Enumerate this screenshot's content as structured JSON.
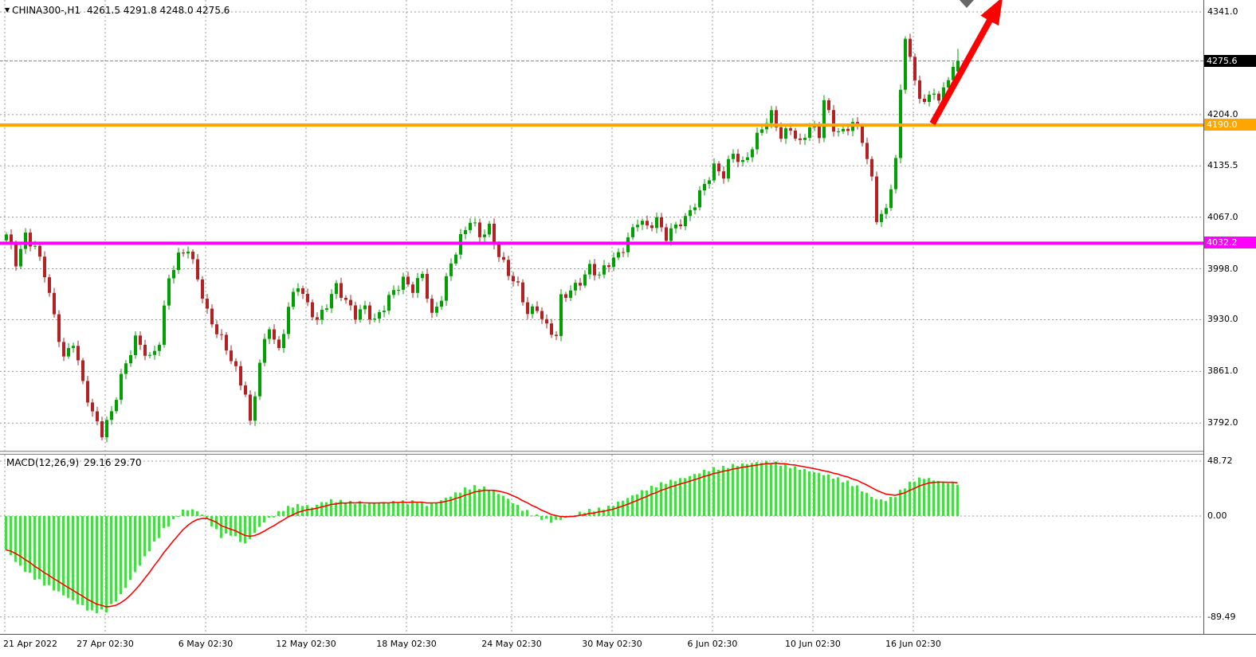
{
  "window": {
    "background": "#ffffff"
  },
  "symbol_bar": {
    "title": "CHINA300-,H1",
    "ohlc_text": "4261.5 4291.8 4248.0 4275.6",
    "dropdown_icon": "down-triangle"
  },
  "indicator_bar": {
    "label": "MACD(12,26,9)",
    "values_text": "29.16 29.70"
  },
  "colors": {
    "up": "#00A000",
    "down": "#B22222",
    "grid": "#999999",
    "current_line": "#888888",
    "hline_orange": "#FFA500",
    "hline_magenta": "#FF00FF",
    "tag_current_bg": "#000000",
    "macd_hist": "#44DD44",
    "macd_signal": "#FF0000",
    "arrow": "#FF0000",
    "marker_triangle": "#666666"
  },
  "chart_data": {
    "type": "candlestick",
    "instrument": "CHINA300-",
    "timeframe": "H1",
    "bars": 200,
    "ylim": [
      3755,
      4357
    ],
    "current_price": 4275.6,
    "last_ohlc": {
      "open": 4261.5,
      "high": 4291.8,
      "low": 4248.0,
      "close": 4275.6
    },
    "price_ticks": [
      {
        "label": "4341.0",
        "price": 4341.0,
        "type": "grid"
      },
      {
        "label": "4275.6",
        "price": 4275.6,
        "type": "current"
      },
      {
        "label": "4204.0",
        "price": 4204.0,
        "type": "grid"
      },
      {
        "label": "4190.0",
        "price": 4190.0,
        "type": "orange"
      },
      {
        "label": "4135.5",
        "price": 4135.5,
        "type": "grid"
      },
      {
        "label": "4067.0",
        "price": 4067.0,
        "type": "grid"
      },
      {
        "label": "4032.2",
        "price": 4032.2,
        "type": "magenta"
      },
      {
        "label": "3998.0",
        "price": 3998.0,
        "type": "grid"
      },
      {
        "label": "3930.0",
        "price": 3930.0,
        "type": "grid"
      },
      {
        "label": "3861.0",
        "price": 3861.0,
        "type": "grid"
      },
      {
        "label": "3792.0",
        "price": 3792.0,
        "type": "grid"
      }
    ],
    "time_labels": [
      {
        "index": 0,
        "label": "21 Apr 2022"
      },
      {
        "index": 21,
        "label": "27 Apr 02:30"
      },
      {
        "index": 42,
        "label": "6 May 02:30"
      },
      {
        "index": 63,
        "label": "12 May 02:30"
      },
      {
        "index": 84,
        "label": "18 May 02:30"
      },
      {
        "index": 106,
        "label": "24 May 02:30"
      },
      {
        "index": 127,
        "label": "30 May 02:30"
      },
      {
        "index": 148,
        "label": "6 Jun 02:30"
      },
      {
        "index": 169,
        "label": "10 Jun 02:30"
      },
      {
        "index": 190,
        "label": "16 Jun 02:30"
      }
    ],
    "hlines": [
      {
        "price": 4190.0,
        "label": "4190.0",
        "color_key": "hline_orange"
      },
      {
        "price": 4032.2,
        "label": "4032.2",
        "color_key": "hline_magenta"
      }
    ],
    "price_anchors": [
      [
        0,
        4040
      ],
      [
        2,
        4005
      ],
      [
        4,
        4045
      ],
      [
        6,
        4030
      ],
      [
        8,
        3990
      ],
      [
        10,
        3930
      ],
      [
        12,
        3880
      ],
      [
        14,
        3905
      ],
      [
        16,
        3845
      ],
      [
        18,
        3800
      ],
      [
        20,
        3778
      ],
      [
        22,
        3810
      ],
      [
        24,
        3855
      ],
      [
        27,
        3900
      ],
      [
        30,
        3880
      ],
      [
        32,
        3905
      ],
      [
        34,
        3985
      ],
      [
        36,
        4010
      ],
      [
        38,
        4025
      ],
      [
        40,
        3990
      ],
      [
        42,
        3940
      ],
      [
        44,
        3910
      ],
      [
        46,
        3890
      ],
      [
        48,
        3865
      ],
      [
        50,
        3835
      ],
      [
        51,
        3790
      ],
      [
        53,
        3870
      ],
      [
        55,
        3920
      ],
      [
        57,
        3890
      ],
      [
        59,
        3950
      ],
      [
        61,
        3975
      ],
      [
        63,
        3945
      ],
      [
        65,
        3930
      ],
      [
        67,
        3955
      ],
      [
        69,
        3975
      ],
      [
        71,
        3950
      ],
      [
        73,
        3935
      ],
      [
        75,
        3950
      ],
      [
        77,
        3930
      ],
      [
        79,
        3945
      ],
      [
        81,
        3965
      ],
      [
        83,
        3985
      ],
      [
        85,
        3975
      ],
      [
        87,
        3990
      ],
      [
        89,
        3930
      ],
      [
        91,
        3960
      ],
      [
        93,
        4010
      ],
      [
        95,
        4040
      ],
      [
        97,
        4060
      ],
      [
        99,
        4040
      ],
      [
        101,
        4055
      ],
      [
        103,
        4020
      ],
      [
        105,
        3990
      ],
      [
        107,
        3970
      ],
      [
        109,
        3940
      ],
      [
        111,
        3950
      ],
      [
        113,
        3920
      ],
      [
        115,
        3905
      ],
      [
        116,
        3955
      ],
      [
        118,
        3970
      ],
      [
        120,
        3985
      ],
      [
        122,
        4000
      ],
      [
        124,
        3985
      ],
      [
        126,
        4005
      ],
      [
        128,
        4020
      ],
      [
        130,
        4040
      ],
      [
        132,
        4060
      ],
      [
        134,
        4050
      ],
      [
        136,
        4065
      ],
      [
        138,
        4045
      ],
      [
        140,
        4055
      ],
      [
        142,
        4060
      ],
      [
        144,
        4085
      ],
      [
        146,
        4115
      ],
      [
        148,
        4135
      ],
      [
        150,
        4120
      ],
      [
        152,
        4150
      ],
      [
        154,
        4140
      ],
      [
        156,
        4165
      ],
      [
        158,
        4185
      ],
      [
        160,
        4200
      ],
      [
        162,
        4175
      ],
      [
        164,
        4190
      ],
      [
        166,
        4165
      ],
      [
        168,
        4185
      ],
      [
        170,
        4175
      ],
      [
        171,
        4225
      ],
      [
        173,
        4190
      ],
      [
        175,
        4180
      ],
      [
        177,
        4190
      ],
      [
        179,
        4170
      ],
      [
        181,
        4120
      ],
      [
        182,
        4070
      ],
      [
        184,
        4075
      ],
      [
        186,
        4140
      ],
      [
        187,
        4230
      ],
      [
        188,
        4310
      ],
      [
        190,
        4250
      ],
      [
        192,
        4220
      ],
      [
        194,
        4235
      ],
      [
        195,
        4215
      ],
      [
        197,
        4255
      ],
      [
        199,
        4276
      ]
    ],
    "macd": {
      "params": "12,26,9",
      "current_values": [
        29.16,
        29.7
      ],
      "ylim": [
        -104.5,
        54.4
      ],
      "ticks": [
        {
          "label": "48.72",
          "v": 48.72
        },
        {
          "label": "0.00",
          "v": 0
        },
        {
          "label": "-89.49",
          "v": -89.49
        }
      ],
      "anchors": [
        [
          0,
          -30
        ],
        [
          3,
          -45
        ],
        [
          6,
          -55
        ],
        [
          10,
          -65
        ],
        [
          14,
          -75
        ],
        [
          18,
          -85
        ],
        [
          21,
          -84
        ],
        [
          24,
          -70
        ],
        [
          27,
          -50
        ],
        [
          30,
          -30
        ],
        [
          33,
          -12
        ],
        [
          35,
          -4
        ],
        [
          37,
          5
        ],
        [
          39,
          6
        ],
        [
          41,
          2
        ],
        [
          43,
          -8
        ],
        [
          45,
          -18
        ],
        [
          47,
          -16
        ],
        [
          50,
          -25
        ],
        [
          52,
          -15
        ],
        [
          54,
          -5
        ],
        [
          56,
          0
        ],
        [
          58,
          6
        ],
        [
          60,
          9
        ],
        [
          62,
          10
        ],
        [
          64,
          8
        ],
        [
          66,
          12
        ],
        [
          68,
          14
        ],
        [
          70,
          13
        ],
        [
          72,
          12
        ],
        [
          74,
          12
        ],
        [
          76,
          11
        ],
        [
          78,
          12
        ],
        [
          80,
          12
        ],
        [
          82,
          13
        ],
        [
          84,
          12
        ],
        [
          86,
          13
        ],
        [
          88,
          10
        ],
        [
          90,
          12
        ],
        [
          92,
          16
        ],
        [
          94,
          20
        ],
        [
          96,
          24
        ],
        [
          98,
          26
        ],
        [
          100,
          25
        ],
        [
          102,
          22
        ],
        [
          104,
          18
        ],
        [
          106,
          12
        ],
        [
          108,
          6
        ],
        [
          110,
          2
        ],
        [
          112,
          -2
        ],
        [
          114,
          -5
        ],
        [
          116,
          -3
        ],
        [
          118,
          0
        ],
        [
          120,
          3
        ],
        [
          122,
          5
        ],
        [
          124,
          6
        ],
        [
          126,
          8
        ],
        [
          128,
          12
        ],
        [
          130,
          16
        ],
        [
          132,
          20
        ],
        [
          134,
          24
        ],
        [
          136,
          27
        ],
        [
          138,
          30
        ],
        [
          140,
          32
        ],
        [
          142,
          34
        ],
        [
          144,
          37
        ],
        [
          146,
          40
        ],
        [
          148,
          42
        ],
        [
          150,
          43
        ],
        [
          152,
          45
        ],
        [
          154,
          46
        ],
        [
          156,
          47
        ],
        [
          158,
          48
        ],
        [
          160,
          48
        ],
        [
          162,
          46
        ],
        [
          164,
          44
        ],
        [
          166,
          42
        ],
        [
          168,
          40
        ],
        [
          170,
          38
        ],
        [
          172,
          36
        ],
        [
          174,
          33
        ],
        [
          176,
          30
        ],
        [
          178,
          26
        ],
        [
          180,
          20
        ],
        [
          182,
          15
        ],
        [
          184,
          14
        ],
        [
          186,
          18
        ],
        [
          188,
          26
        ],
        [
          190,
          32
        ],
        [
          192,
          34
        ],
        [
          194,
          32
        ],
        [
          196,
          30
        ],
        [
          199,
          29
        ]
      ]
    },
    "arrow": {
      "from_bar": 194,
      "from_price": 4192,
      "to_bar": 208.7,
      "to_price": 4361
    }
  }
}
